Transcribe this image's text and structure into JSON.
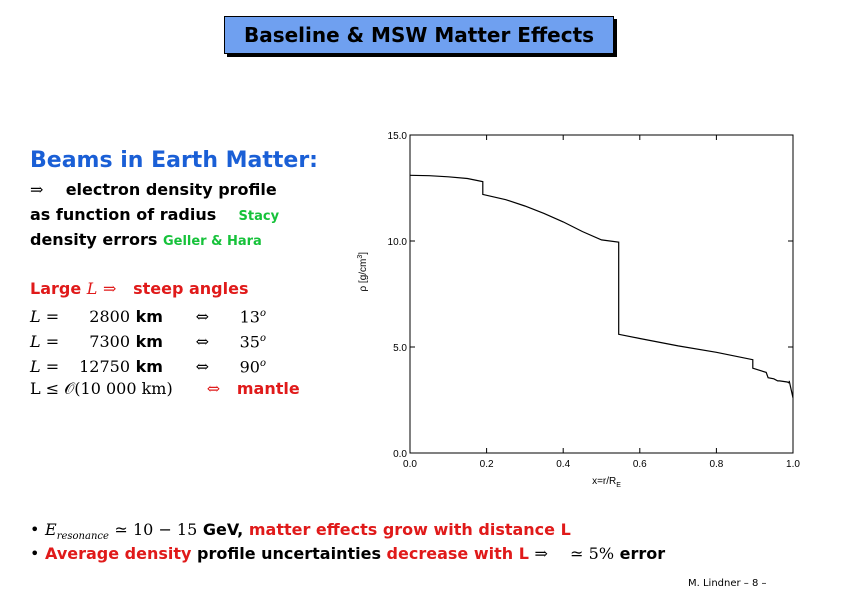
{
  "title": "Baseline & MSW Matter Effects",
  "left": {
    "heading": "Beams in Earth Matter:",
    "arrow": "⇒",
    "line1": "electron density profile",
    "line2": "as function of radius",
    "stacy": "Stacy",
    "line3": "density errors",
    "geller": "Geller & Hara",
    "large_a": "Large",
    "large_L": "L",
    "large_arrow": "⇒",
    "large_b": "steep angles",
    "rows": [
      {
        "lhs": "L =",
        "value": "2800",
        "unit": "km",
        "iff": "⇔",
        "angle": "13",
        "deg": "o"
      },
      {
        "lhs": "L =",
        "value": "7300",
        "unit": "km",
        "iff": "⇔",
        "angle": "35",
        "deg": "o"
      },
      {
        "lhs": "L =",
        "value": "12750",
        "unit": "km",
        "iff": "⇔",
        "angle": "90",
        "deg": "o"
      }
    ],
    "mantle_lhs": "L ≤ 𝒪(10 000 km)",
    "mantle_iff": "⇔",
    "mantle": "mantle"
  },
  "chart_data": {
    "type": "line",
    "xlabel": "x=r/R",
    "xlabel_sub": "E",
    "ylabel": "ρ [g/cm",
    "ylabel_sup": "3",
    "ylabel_end": "]",
    "xlim": [
      0.0,
      1.0
    ],
    "ylim": [
      0.0,
      15.0
    ],
    "xticks": [
      "0.0",
      "0.2",
      "0.4",
      "0.6",
      "0.8",
      "1.0"
    ],
    "yticks": [
      "0.0",
      "5.0",
      "10.0",
      "15.0"
    ],
    "xtick_values": [
      0.0,
      0.2,
      0.4,
      0.6,
      0.8,
      1.0
    ],
    "ytick_values": [
      0.0,
      5.0,
      10.0,
      15.0
    ],
    "series": [
      {
        "x": [
          0.0,
          0.05,
          0.1,
          0.15,
          0.19,
          0.19,
          0.25,
          0.3,
          0.35,
          0.4,
          0.45,
          0.5,
          0.545,
          0.545,
          0.6,
          0.7,
          0.8,
          0.895,
          0.895,
          0.93,
          0.935,
          0.95,
          0.96,
          0.965,
          0.985,
          0.99,
          0.99,
          1.0
        ],
        "y": [
          13.1,
          13.08,
          13.03,
          12.95,
          12.8,
          12.2,
          11.95,
          11.65,
          11.3,
          10.9,
          10.45,
          10.05,
          9.95,
          5.6,
          5.4,
          5.05,
          4.75,
          4.4,
          4.0,
          3.8,
          3.55,
          3.5,
          3.4,
          3.4,
          3.35,
          3.3,
          3.4,
          2.6
        ]
      }
    ]
  },
  "bullets": {
    "b1_math": "E",
    "b1_sub": "resonance",
    "b1_math2": "≃ 10 − 15",
    "b1_gev": "GeV,",
    "b1_red": "matter effects grow with distance L",
    "b2_red1": "Average density",
    "b2_black": "profile uncertainties",
    "b2_red2": "decrease with L",
    "b2_arrow": "⇒",
    "b2_approx": "≃ 5%",
    "b2_error": "error"
  },
  "footer": "M. Lindner   – 8 –"
}
